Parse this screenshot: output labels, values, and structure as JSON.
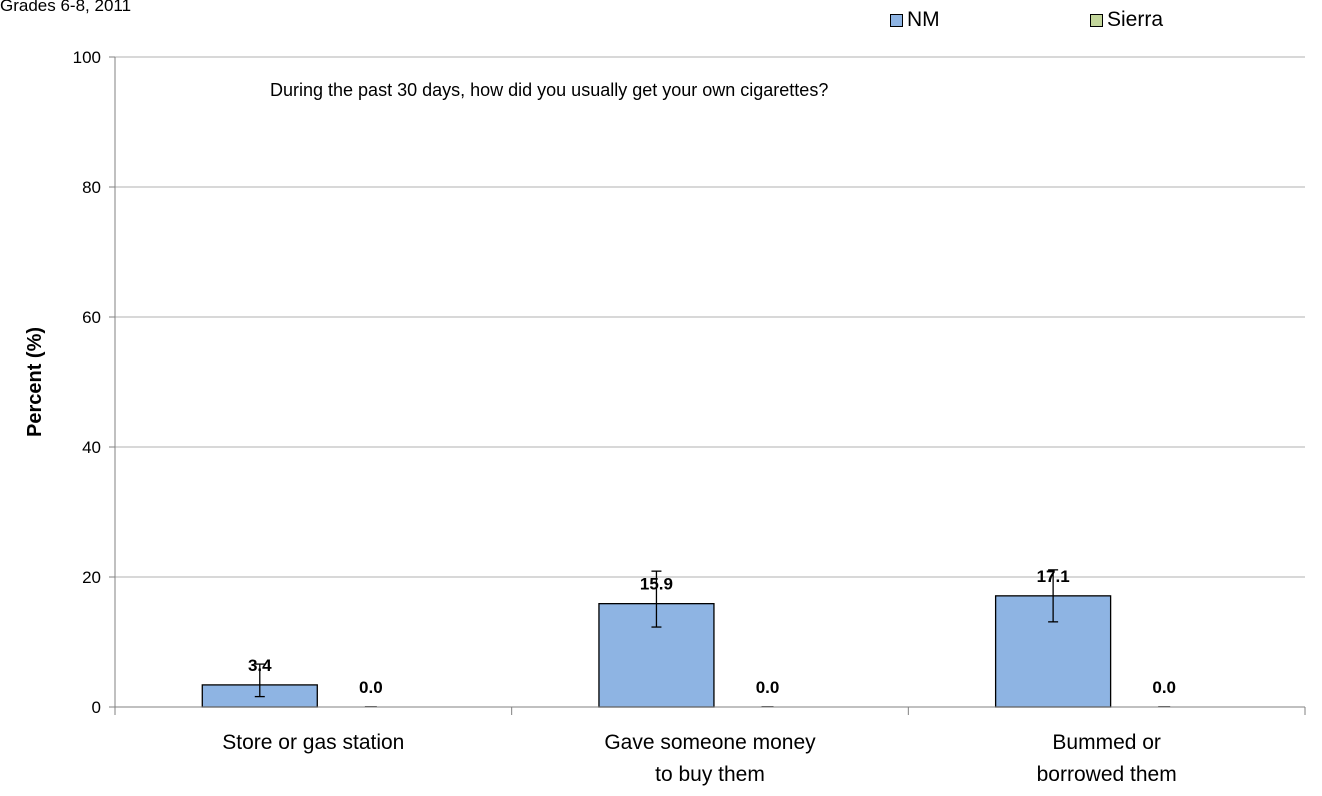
{
  "chart_data": {
    "type": "bar",
    "subtitle": "Grades 6-8, 2011",
    "annotation": "During the past 30 days, how did you usually get your own cigarettes?",
    "ylabel": "Percent (%)",
    "xlabel": "",
    "ylim": [
      0,
      100
    ],
    "yticks": [
      0,
      20,
      40,
      60,
      80,
      100
    ],
    "categories": [
      [
        "Store or gas station"
      ],
      [
        "Gave someone money",
        "to buy them"
      ],
      [
        "Bummed or",
        "borrowed them"
      ]
    ],
    "series": [
      {
        "name": "NM",
        "color": "#8eb4e3",
        "values": [
          3.4,
          15.9,
          17.1
        ],
        "labels": [
          "3.4",
          "15.9",
          "17.1"
        ],
        "error_low": [
          1.6,
          12.3,
          13.1
        ],
        "error_high": [
          6.6,
          20.9,
          21.1
        ]
      },
      {
        "name": "Sierra",
        "color": "#c3d69b",
        "values": [
          0.0,
          0.0,
          0.0
        ],
        "labels": [
          "0.0",
          "0.0",
          "0.0"
        ]
      }
    ],
    "grid": true,
    "legend_position": "top-right"
  }
}
